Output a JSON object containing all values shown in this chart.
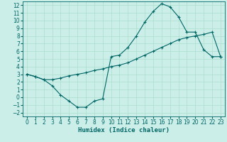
{
  "xlabel": "Humidex (Indice chaleur)",
  "bg_color": "#cceee8",
  "grid_color": "#aaddcc",
  "line_color": "#006666",
  "xlim": [
    -0.5,
    23.5
  ],
  "ylim": [
    -2.5,
    12.5
  ],
  "xticks": [
    0,
    1,
    2,
    3,
    4,
    5,
    6,
    7,
    8,
    9,
    10,
    11,
    12,
    13,
    14,
    15,
    16,
    17,
    18,
    19,
    20,
    21,
    22,
    23
  ],
  "yticks": [
    -2,
    -1,
    0,
    1,
    2,
    3,
    4,
    5,
    6,
    7,
    8,
    9,
    10,
    11,
    12
  ],
  "series1_x": [
    0,
    1,
    2,
    3,
    4,
    5,
    6,
    7,
    8,
    9,
    10,
    11,
    12,
    13,
    14,
    15,
    16,
    17,
    18,
    19,
    20,
    21,
    22,
    23
  ],
  "series1_y": [
    3.0,
    2.7,
    2.3,
    1.5,
    0.3,
    -0.5,
    -1.3,
    -1.3,
    -0.5,
    -0.2,
    5.3,
    5.5,
    6.5,
    8.0,
    9.8,
    11.2,
    12.2,
    11.8,
    10.5,
    8.5,
    8.5,
    6.2,
    5.3,
    5.3
  ],
  "series2_x": [
    0,
    1,
    2,
    3,
    4,
    5,
    6,
    7,
    8,
    9,
    10,
    11,
    12,
    13,
    14,
    15,
    16,
    17,
    18,
    19,
    20,
    21,
    22,
    23
  ],
  "series2_y": [
    3.0,
    2.7,
    2.3,
    2.3,
    2.5,
    2.8,
    3.0,
    3.2,
    3.5,
    3.7,
    4.0,
    4.2,
    4.5,
    5.0,
    5.5,
    6.0,
    6.5,
    7.0,
    7.5,
    7.8,
    8.0,
    8.2,
    8.5,
    5.3
  ],
  "font_family": "monospace",
  "tick_fontsize": 5.5,
  "xlabel_fontsize": 6.5
}
